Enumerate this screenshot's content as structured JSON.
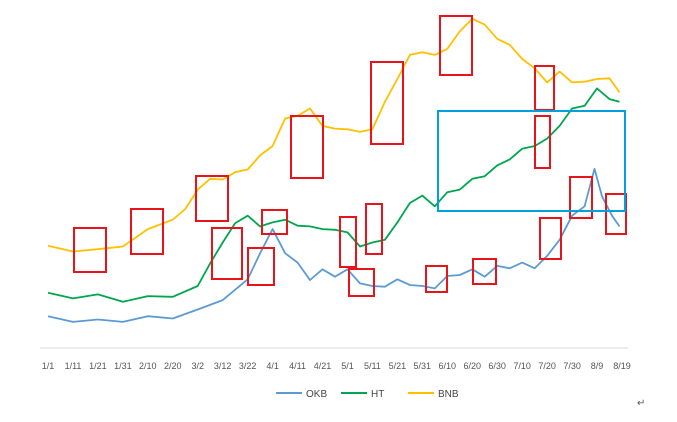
{
  "chart_data": {
    "type": "line",
    "title": "",
    "xlabel": "",
    "ylabel": "",
    "grid": false,
    "legend_position": "bottom",
    "x_tick_labels": [
      "1/1",
      "1/11",
      "1/21",
      "1/31",
      "2/10",
      "2/20",
      "3/2",
      "3/12",
      "3/22",
      "4/1",
      "4/11",
      "4/21",
      "5/1",
      "5/11",
      "5/21",
      "5/31",
      "6/10",
      "6/20",
      "6/30",
      "7/10",
      "7/20",
      "7/30",
      "8/9",
      "8/19"
    ],
    "x_tick_day_index": [
      0,
      10,
      20,
      30,
      40,
      50,
      60,
      70,
      80,
      90,
      100,
      110,
      120,
      130,
      140,
      150,
      160,
      170,
      180,
      190,
      200,
      210,
      220,
      230
    ],
    "ylim": [
      0,
      100
    ],
    "series": [
      {
        "name": "OKB",
        "color": "#5B9BD5",
        "points": [
          [
            0,
            8
          ],
          [
            10,
            7.5
          ],
          [
            20,
            7
          ],
          [
            30,
            7.5
          ],
          [
            40,
            8
          ],
          [
            50,
            8.5
          ],
          [
            60,
            10
          ],
          [
            70,
            14
          ],
          [
            80,
            19
          ],
          [
            85,
            28
          ],
          [
            90,
            34
          ],
          [
            95,
            28
          ],
          [
            100,
            24
          ],
          [
            105,
            20
          ],
          [
            110,
            22
          ],
          [
            115,
            21
          ],
          [
            120,
            22
          ],
          [
            125,
            19
          ],
          [
            130,
            17
          ],
          [
            135,
            18
          ],
          [
            140,
            19
          ],
          [
            145,
            18.5
          ],
          [
            150,
            17
          ],
          [
            155,
            17.5
          ],
          [
            160,
            20
          ],
          [
            165,
            21.5
          ],
          [
            170,
            22
          ],
          [
            175,
            21
          ],
          [
            180,
            23
          ],
          [
            185,
            23.5
          ],
          [
            190,
            24
          ],
          [
            195,
            23.5
          ],
          [
            200,
            26
          ],
          [
            205,
            32
          ],
          [
            210,
            38
          ],
          [
            215,
            42
          ],
          [
            219,
            52
          ],
          [
            222,
            45
          ],
          [
            226,
            38
          ],
          [
            229,
            36
          ]
        ]
      },
      {
        "name": "HT",
        "color": "#00A64F",
        "points": [
          [
            0,
            15
          ],
          [
            10,
            14.5
          ],
          [
            20,
            14.5
          ],
          [
            30,
            13.5
          ],
          [
            40,
            14
          ],
          [
            50,
            15
          ],
          [
            60,
            17
          ],
          [
            65,
            25
          ],
          [
            70,
            30
          ],
          [
            75,
            37
          ],
          [
            80,
            38
          ],
          [
            85,
            36
          ],
          [
            90,
            36
          ],
          [
            95,
            38
          ],
          [
            100,
            35
          ],
          [
            105,
            36
          ],
          [
            110,
            34
          ],
          [
            115,
            35
          ],
          [
            120,
            33
          ],
          [
            125,
            30
          ],
          [
            130,
            30
          ],
          [
            135,
            32
          ],
          [
            140,
            36
          ],
          [
            145,
            43
          ],
          [
            150,
            44
          ],
          [
            155,
            42
          ],
          [
            160,
            45
          ],
          [
            165,
            47
          ],
          [
            170,
            49
          ],
          [
            175,
            51
          ],
          [
            180,
            53
          ],
          [
            185,
            56
          ],
          [
            190,
            58
          ],
          [
            195,
            60
          ],
          [
            200,
            61
          ],
          [
            205,
            66
          ],
          [
            210,
            70
          ],
          [
            215,
            72
          ],
          [
            220,
            76
          ],
          [
            225,
            74
          ],
          [
            229,
            72
          ]
        ]
      },
      {
        "name": "BNB",
        "color": "#FFC000",
        "points": [
          [
            0,
            29
          ],
          [
            10,
            28.5
          ],
          [
            20,
            28
          ],
          [
            30,
            30
          ],
          [
            40,
            34
          ],
          [
            50,
            38
          ],
          [
            55,
            40
          ],
          [
            60,
            47
          ],
          [
            65,
            49
          ],
          [
            70,
            50
          ],
          [
            75,
            51
          ],
          [
            80,
            53
          ],
          [
            85,
            56
          ],
          [
            90,
            60
          ],
          [
            95,
            67
          ],
          [
            100,
            69
          ],
          [
            105,
            70
          ],
          [
            110,
            66
          ],
          [
            115,
            64
          ],
          [
            120,
            65
          ],
          [
            125,
            63
          ],
          [
            130,
            65
          ],
          [
            135,
            72
          ],
          [
            140,
            80
          ],
          [
            145,
            86
          ],
          [
            150,
            88
          ],
          [
            155,
            86
          ],
          [
            160,
            89
          ],
          [
            165,
            93
          ],
          [
            170,
            98
          ],
          [
            175,
            95
          ],
          [
            180,
            92
          ],
          [
            185,
            89
          ],
          [
            190,
            86
          ],
          [
            195,
            82
          ],
          [
            200,
            79
          ],
          [
            205,
            81
          ],
          [
            210,
            79
          ],
          [
            215,
            78
          ],
          [
            220,
            80
          ],
          [
            225,
            79
          ],
          [
            229,
            76
          ]
        ]
      }
    ],
    "annotations": {
      "red_box_color": "#E8141C",
      "blue_box_color": "#00A0DC"
    }
  }
}
